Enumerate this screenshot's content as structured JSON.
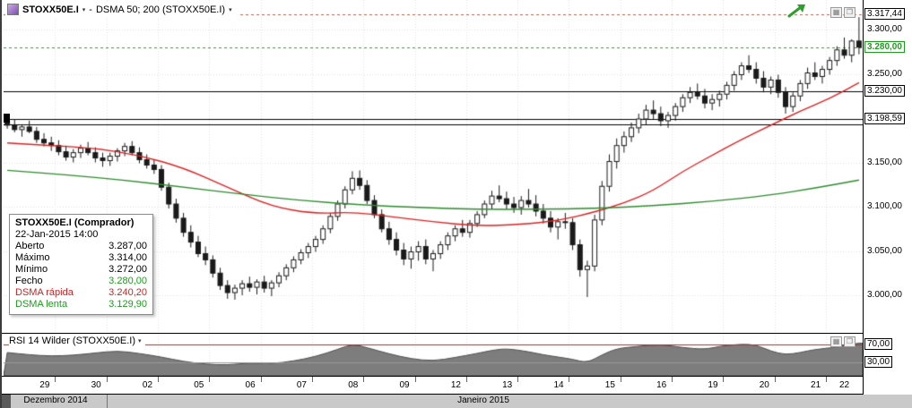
{
  "colors": {
    "up_candle": "#ffffff",
    "down_candle": "#1a1a1a",
    "candle_outline": "#1a1a1a",
    "dsma_fast": "#dd2222",
    "dsma_slow": "#2e8b2e",
    "rsi_fill": "#7d7d7d",
    "rsi_outline": "#4f4f4f",
    "rsi_level_70": "#cc2222",
    "rsi_level_30": "#9a9a9a",
    "last_price": "#2aa02a",
    "high_marker": "#aa6655",
    "grid": "#e2e2e2",
    "level_line": "#000000"
  },
  "toolbar": {
    "symbol": "STOXX50E.I",
    "separator": "-",
    "indicator": "DSMA 50; 200 (STOXX50E.I)",
    "dropdown_glyph": "▾"
  },
  "panel_buttons": {
    "left_glyph": "▦",
    "right_glyph": "❒"
  },
  "tooltip": {
    "title": "STOXX50E.I (Comprador)",
    "datetime": "22-Jan-2015 14:00",
    "rows": [
      {
        "label": "Aberto",
        "value": "3.287,00",
        "label_color": "#000000",
        "value_color": "#000000"
      },
      {
        "label": "Máximo",
        "value": "3.314,00",
        "label_color": "#000000",
        "value_color": "#000000"
      },
      {
        "label": "Mínimo",
        "value": "3.272,00",
        "label_color": "#000000",
        "value_color": "#000000"
      },
      {
        "label": "Fecho",
        "value": "3.280,00",
        "label_color": "#000000",
        "value_color": "#1e9b1e"
      },
      {
        "label": "DSMA rápida",
        "value": "3.240,20",
        "label_color": "#cc2222",
        "value_color": "#cc2222"
      },
      {
        "label": "DSMA lenta",
        "value": "3.129,90",
        "label_color": "#1e9b1e",
        "value_color": "#1e9b1e"
      }
    ]
  },
  "rsi_header": {
    "label": "RSI 14 Wilder (STOXX50E.I)",
    "dropdown_glyph": "▾"
  },
  "price_axis": {
    "plain_ticks": [
      {
        "label": "3.300,00",
        "price": 3300
      },
      {
        "label": "3.250,00",
        "price": 3250
      },
      {
        "label": "3.150,00",
        "price": 3150
      },
      {
        "label": "3.100,00",
        "price": 3100
      },
      {
        "label": "3.050,00",
        "price": 3050
      },
      {
        "label": "3.000,00",
        "price": 3000
      }
    ],
    "boxed_ticks": [
      {
        "label": "3.317,44",
        "price": 3317.44,
        "style": "black"
      },
      {
        "label": "3.280,00",
        "price": 3280,
        "style": "green"
      },
      {
        "label": "3.230,00",
        "price": 3230,
        "style": "black"
      },
      {
        "label": "3.198,59",
        "price": 3198.59,
        "style": "black"
      }
    ],
    "rsi_ticks": [
      {
        "label": "70,00",
        "value": 70
      },
      {
        "label": "30,00",
        "value": 30
      }
    ]
  },
  "x_axis": {
    "day_labels": [
      "29",
      "30",
      "02",
      "05",
      "06",
      "07",
      "08",
      "09",
      "12",
      "13",
      "14",
      "15",
      "16",
      "19",
      "20",
      "21",
      "22"
    ]
  },
  "period_bar": {
    "left_label": "Dezembro 2014",
    "right_label": "Janeiro 2015"
  },
  "chart_data": {
    "type": "candlestick",
    "symbol": "STOXX50E.I",
    "candles_per_day": 7,
    "candles": [
      [
        3196,
        3204,
        3188,
        3192
      ],
      [
        3192,
        3199,
        3184,
        3187
      ],
      [
        3187,
        3193,
        3179,
        3190
      ],
      [
        3190,
        3197,
        3183,
        3185
      ],
      [
        3185,
        3190,
        3172,
        3176
      ],
      [
        3176,
        3183,
        3168,
        3172
      ],
      [
        3172,
        3179,
        3163,
        3169
      ],
      [
        3169,
        3175,
        3158,
        3162
      ],
      [
        3162,
        3169,
        3152,
        3156
      ],
      [
        3156,
        3165,
        3150,
        3161
      ],
      [
        3161,
        3170,
        3155,
        3166
      ],
      [
        3166,
        3173,
        3158,
        3161
      ],
      [
        3161,
        3167,
        3150,
        3155
      ],
      [
        3155,
        3161,
        3145,
        3152
      ],
      [
        3152,
        3161,
        3146,
        3157
      ],
      [
        3157,
        3166,
        3151,
        3163
      ],
      [
        3163,
        3172,
        3157,
        3168
      ],
      [
        3168,
        3174,
        3158,
        3161
      ],
      [
        3161,
        3167,
        3149,
        3153
      ],
      [
        3153,
        3159,
        3143,
        3147
      ],
      [
        3147,
        3153,
        3137,
        3142
      ],
      [
        3142,
        3147,
        3118,
        3122
      ],
      [
        3122,
        3127,
        3098,
        3103
      ],
      [
        3103,
        3109,
        3082,
        3087
      ],
      [
        3087,
        3093,
        3066,
        3071
      ],
      [
        3071,
        3079,
        3054,
        3060
      ],
      [
        3060,
        3067,
        3043,
        3047
      ],
      [
        3047,
        3055,
        3034,
        3040
      ],
      [
        3040,
        3045,
        3020,
        3025
      ],
      [
        3025,
        3031,
        3006,
        3011
      ],
      [
        3011,
        3017,
        2996,
        3003
      ],
      [
        3003,
        3012,
        2995,
        3008
      ],
      [
        3008,
        3017,
        3000,
        3013
      ],
      [
        3013,
        3021,
        3004,
        3009
      ],
      [
        3009,
        3018,
        3001,
        3015
      ],
      [
        3015,
        3022,
        3003,
        3008
      ],
      [
        3008,
        3017,
        2999,
        3014
      ],
      [
        3014,
        3026,
        3009,
        3022
      ],
      [
        3022,
        3035,
        3017,
        3031
      ],
      [
        3031,
        3044,
        3026,
        3040
      ],
      [
        3040,
        3052,
        3035,
        3048
      ],
      [
        3048,
        3059,
        3042,
        3055
      ],
      [
        3055,
        3067,
        3049,
        3063
      ],
      [
        3063,
        3079,
        3058,
        3075
      ],
      [
        3075,
        3093,
        3070,
        3089
      ],
      [
        3089,
        3107,
        3084,
        3103
      ],
      [
        3103,
        3123,
        3098,
        3119
      ],
      [
        3119,
        3140,
        3114,
        3132
      ],
      [
        3132,
        3141,
        3119,
        3124
      ],
      [
        3124,
        3130,
        3103,
        3107
      ],
      [
        3107,
        3113,
        3087,
        3091
      ],
      [
        3091,
        3097,
        3071,
        3075
      ],
      [
        3075,
        3083,
        3057,
        3063
      ],
      [
        3063,
        3071,
        3045,
        3051
      ],
      [
        3051,
        3059,
        3034,
        3041
      ],
      [
        3041,
        3055,
        3030,
        3049
      ],
      [
        3049,
        3061,
        3039,
        3055
      ],
      [
        3055,
        3063,
        3035,
        3041
      ],
      [
        3041,
        3051,
        3027,
        3047
      ],
      [
        3047,
        3061,
        3041,
        3057
      ],
      [
        3057,
        3071,
        3051,
        3067
      ],
      [
        3067,
        3079,
        3061,
        3075
      ],
      [
        3075,
        3085,
        3066,
        3071
      ],
      [
        3071,
        3085,
        3065,
        3081
      ],
      [
        3081,
        3095,
        3077,
        3091
      ],
      [
        3091,
        3107,
        3087,
        3103
      ],
      [
        3103,
        3118,
        3097,
        3112
      ],
      [
        3112,
        3124,
        3105,
        3109
      ],
      [
        3109,
        3117,
        3097,
        3103
      ],
      [
        3103,
        3111,
        3093,
        3099
      ],
      [
        3099,
        3112,
        3091,
        3107
      ],
      [
        3107,
        3120,
        3099,
        3103
      ],
      [
        3103,
        3113,
        3089,
        3095
      ],
      [
        3095,
        3103,
        3081,
        3087
      ],
      [
        3087,
        3095,
        3071,
        3077
      ],
      [
        3077,
        3087,
        3063,
        3083
      ],
      [
        3083,
        3093,
        3075,
        3082
      ],
      [
        3082,
        3087,
        3051,
        3057
      ],
      [
        3057,
        3063,
        3021,
        3029
      ],
      [
        3029,
        3039,
        2998,
        3033
      ],
      [
        3033,
        3091,
        3027,
        3085
      ],
      [
        3085,
        3129,
        3079,
        3123
      ],
      [
        3123,
        3159,
        3117,
        3151
      ],
      [
        3151,
        3177,
        3143,
        3169
      ],
      [
        3169,
        3185,
        3161,
        3179
      ],
      [
        3179,
        3195,
        3173,
        3189
      ],
      [
        3189,
        3205,
        3183,
        3199
      ],
      [
        3199,
        3215,
        3193,
        3209
      ],
      [
        3209,
        3220,
        3199,
        3205
      ],
      [
        3205,
        3213,
        3191,
        3197
      ],
      [
        3197,
        3207,
        3189,
        3203
      ],
      [
        3203,
        3217,
        3197,
        3213
      ],
      [
        3213,
        3227,
        3207,
        3223
      ],
      [
        3223,
        3235,
        3217,
        3229
      ],
      [
        3229,
        3239,
        3221,
        3225
      ],
      [
        3225,
        3233,
        3211,
        3217
      ],
      [
        3217,
        3227,
        3209,
        3221
      ],
      [
        3221,
        3231,
        3213,
        3227
      ],
      [
        3227,
        3241,
        3221,
        3237
      ],
      [
        3237,
        3253,
        3231,
        3249
      ],
      [
        3249,
        3263,
        3243,
        3259
      ],
      [
        3259,
        3271,
        3251,
        3255
      ],
      [
        3255,
        3263,
        3239,
        3245
      ],
      [
        3245,
        3253,
        3229,
        3235
      ],
      [
        3235,
        3247,
        3227,
        3243
      ],
      [
        3243,
        3249,
        3223,
        3229
      ],
      [
        3229,
        3235,
        3205,
        3213
      ],
      [
        3213,
        3229,
        3207,
        3225
      ],
      [
        3225,
        3243,
        3219,
        3239
      ],
      [
        3239,
        3257,
        3233,
        3251
      ],
      [
        3251,
        3263,
        3243,
        3247
      ],
      [
        3247,
        3259,
        3239,
        3255
      ],
      [
        3255,
        3269,
        3249,
        3265
      ],
      [
        3265,
        3281,
        3259,
        3277
      ],
      [
        3277,
        3291,
        3267,
        3271
      ],
      [
        3271,
        3289,
        3263,
        3287
      ],
      [
        3287,
        3314,
        3272,
        3280
      ]
    ],
    "overlays": [
      {
        "name": "DSMA 50",
        "color_key": "dsma_fast",
        "points": [
          [
            0,
            3172
          ],
          [
            6,
            3169
          ],
          [
            12,
            3166
          ],
          [
            18,
            3158
          ],
          [
            24,
            3144
          ],
          [
            30,
            3122
          ],
          [
            36,
            3100
          ],
          [
            42,
            3092
          ],
          [
            47,
            3094
          ],
          [
            52,
            3089
          ],
          [
            58,
            3083
          ],
          [
            64,
            3078
          ],
          [
            70,
            3080
          ],
          [
            75,
            3084
          ],
          [
            80,
            3094
          ],
          [
            84,
            3104
          ],
          [
            88,
            3118
          ],
          [
            92,
            3140
          ],
          [
            96,
            3158
          ],
          [
            100,
            3176
          ],
          [
            104,
            3192
          ],
          [
            108,
            3208
          ],
          [
            112,
            3222
          ],
          [
            116,
            3240
          ]
        ]
      },
      {
        "name": "DSMA 200",
        "color_key": "dsma_slow",
        "points": [
          [
            0,
            3141
          ],
          [
            8,
            3136
          ],
          [
            16,
            3130
          ],
          [
            24,
            3122
          ],
          [
            32,
            3114
          ],
          [
            40,
            3107
          ],
          [
            48,
            3102
          ],
          [
            56,
            3099
          ],
          [
            64,
            3097
          ],
          [
            72,
            3097
          ],
          [
            80,
            3098
          ],
          [
            88,
            3101
          ],
          [
            96,
            3106
          ],
          [
            104,
            3113
          ],
          [
            110,
            3121
          ],
          [
            116,
            3130
          ]
        ]
      }
    ],
    "horizontal_lines": [
      3230.0,
      3198.59,
      3193.0
    ],
    "dotted_lines": [
      {
        "price": 3317.44,
        "color_key": "high_marker"
      },
      {
        "price": 3280.0,
        "color_key": "last_price"
      }
    ],
    "y_gridlines": [
      3300,
      3250,
      3150,
      3100,
      3050,
      3000
    ],
    "last_price": 3280.0,
    "session_high": 3317.44,
    "rsi": {
      "name": "RSI 14 Wilder",
      "levels": [
        70,
        30
      ],
      "points": [
        [
          0,
          52
        ],
        [
          3,
          47
        ],
        [
          6,
          44
        ],
        [
          9,
          46
        ],
        [
          12,
          51
        ],
        [
          15,
          56
        ],
        [
          18,
          50
        ],
        [
          21,
          42
        ],
        [
          24,
          32
        ],
        [
          27,
          26
        ],
        [
          30,
          24
        ],
        [
          33,
          29
        ],
        [
          36,
          27
        ],
        [
          39,
          33
        ],
        [
          42,
          43
        ],
        [
          45,
          59
        ],
        [
          47,
          71
        ],
        [
          49,
          63
        ],
        [
          52,
          49
        ],
        [
          55,
          38
        ],
        [
          58,
          33
        ],
        [
          61,
          41
        ],
        [
          64,
          50
        ],
        [
          66,
          57
        ],
        [
          68,
          61
        ],
        [
          71,
          54
        ],
        [
          73,
          47
        ],
        [
          75,
          42
        ],
        [
          77,
          37
        ],
        [
          79,
          29
        ],
        [
          81,
          47
        ],
        [
          83,
          61
        ],
        [
          86,
          66
        ],
        [
          89,
          70
        ],
        [
          92,
          63
        ],
        [
          95,
          59
        ],
        [
          97,
          66
        ],
        [
          100,
          71
        ],
        [
          102,
          69
        ],
        [
          104,
          55
        ],
        [
          106,
          47
        ],
        [
          108,
          52
        ],
        [
          110,
          59
        ],
        [
          112,
          62
        ],
        [
          114,
          68
        ],
        [
          116,
          73
        ]
      ]
    }
  }
}
